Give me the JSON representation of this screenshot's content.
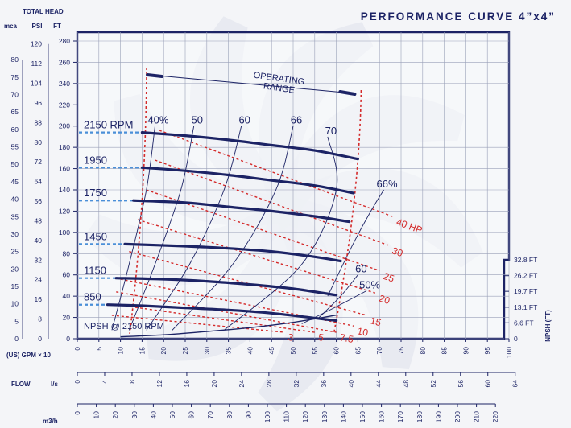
{
  "title": "PERFORMANCE CURVE  4”x4”",
  "total_head_label": "TOTAL HEAD",
  "unit_mca": "mca",
  "unit_psi": "PSI",
  "unit_ft": "FT",
  "gpm_label": "(US) GPM × 10",
  "flow_label": "FLOW",
  "ls_label": "l/s",
  "m3h_label": "m3/h",
  "npsh_label": "NPSH  (FT)",
  "operating_range_label": [
    "OPERATING",
    "RANGE"
  ],
  "npsh_curve_label": "NPSH @ 2150 RPM",
  "colors": {
    "navy": "#1c2365",
    "red": "#d42a2a",
    "dash_blue": "#4a8fd8",
    "bg": "#f4f5f8"
  },
  "chart_data": {
    "type": "line",
    "title": "PERFORMANCE CURVE  4”x4”",
    "xlabel": "(US) GPM × 10",
    "ylabel": "TOTAL HEAD",
    "xlim": [
      0,
      100
    ],
    "ylim": [
      0,
      290
    ],
    "x_ticks": [
      0,
      5,
      10,
      15,
      20,
      25,
      30,
      35,
      40,
      45,
      50,
      55,
      60,
      65,
      70,
      75,
      80,
      85,
      90,
      95,
      100
    ],
    "y_ticks_ft": [
      0,
      20,
      40,
      60,
      80,
      100,
      120,
      140,
      160,
      180,
      200,
      220,
      240,
      260,
      280
    ],
    "y_ticks_psi": [
      0,
      8,
      16,
      24,
      32,
      40,
      48,
      56,
      64,
      72,
      80,
      88,
      96,
      104,
      112,
      120
    ],
    "y_ticks_mca": [
      0,
      5,
      10,
      15,
      20,
      25,
      30,
      35,
      40,
      45,
      50,
      55,
      60,
      65,
      70,
      75,
      80
    ],
    "ls_ticks": [
      0,
      4,
      8,
      12,
      16,
      20,
      24,
      28,
      32,
      36,
      40,
      44,
      48,
      52,
      56,
      60,
      64
    ],
    "m3h_ticks": [
      0,
      10,
      20,
      30,
      40,
      50,
      60,
      70,
      80,
      90,
      100,
      110,
      120,
      130,
      140,
      150,
      160,
      170,
      180,
      190,
      200,
      210,
      220
    ],
    "npsh_ticks": [
      {
        "label": "0",
        "ft": 0
      },
      {
        "label": "6.6 FT",
        "ft": 6.6
      },
      {
        "label": "13.1 FT",
        "ft": 13.1
      },
      {
        "label": "19.7 FT",
        "ft": 19.7
      },
      {
        "label": "26.2 FT",
        "ft": 26.2
      },
      {
        "label": "32.8 FT",
        "ft": 32.8
      }
    ],
    "series": [
      {
        "name": "2150 RPM",
        "x": [
          15,
          25,
          35,
          45,
          55,
          65
        ],
        "y": [
          194,
          191,
          187,
          182,
          177,
          169
        ]
      },
      {
        "name": "1950",
        "x": [
          15,
          25,
          35,
          45,
          55,
          64
        ],
        "y": [
          161,
          158,
          154,
          149,
          144,
          137
        ]
      },
      {
        "name": "1750",
        "x": [
          13,
          25,
          35,
          45,
          55,
          63
        ],
        "y": [
          130,
          128,
          124,
          120,
          115,
          110
        ]
      },
      {
        "name": "1450",
        "x": [
          11,
          25,
          35,
          45,
          55,
          61
        ],
        "y": [
          89,
          87,
          85,
          82,
          77,
          73
        ]
      },
      {
        "name": "1150",
        "x": [
          9,
          20,
          30,
          40,
          50,
          60
        ],
        "y": [
          57,
          56,
          54,
          51,
          47,
          41
        ]
      },
      {
        "name": "850",
        "x": [
          7,
          15,
          25,
          35,
          45,
          60
        ],
        "y": [
          32,
          31,
          29,
          27,
          24,
          17
        ]
      }
    ],
    "npsh_curve": {
      "x": [
        10,
        20,
        30,
        40,
        50,
        60
      ],
      "y": [
        0.8,
        1.6,
        3.0,
        4.6,
        6.8,
        9.8
      ]
    },
    "efficiency_lines": [
      {
        "label": "40%",
        "x": [
          8,
          12,
          16,
          18
        ],
        "y": [
          8,
          70,
          140,
          200
        ]
      },
      {
        "label": "50",
        "x": [
          12,
          18,
          24,
          27
        ],
        "y": [
          8,
          70,
          140,
          200
        ]
      },
      {
        "label": "60",
        "x": [
          16,
          26,
          34,
          38
        ],
        "y": [
          8,
          70,
          140,
          200
        ]
      },
      {
        "label": "66",
        "x": [
          22,
          36,
          46,
          50
        ],
        "y": [
          8,
          70,
          140,
          200
        ]
      },
      {
        "label": "70",
        "x": [
          34,
          52,
          60,
          58
        ],
        "y": [
          8,
          70,
          140,
          190
        ]
      },
      {
        "label": "66%",
        "x": [
          58,
          64,
          68,
          71
        ],
        "y": [
          40,
          90,
          120,
          140
        ]
      },
      {
        "label": "60",
        "x": [
          56,
          61,
          65
        ],
        "y": [
          20,
          40,
          60
        ]
      },
      {
        "label": "50%",
        "x": [
          52,
          59,
          67
        ],
        "y": [
          14,
          28,
          45
        ]
      }
    ],
    "power_lines": [
      {
        "label": "40 HP",
        "x": [
          19,
          73
        ],
        "y": [
          196,
          115
        ]
      },
      {
        "label": "30",
        "x": [
          18,
          72
        ],
        "y": [
          168,
          88
        ]
      },
      {
        "label": "25",
        "x": [
          16,
          70
        ],
        "y": [
          140,
          64
        ]
      },
      {
        "label": "20",
        "x": [
          14,
          69
        ],
        "y": [
          112,
          43
        ]
      },
      {
        "label": "15",
        "x": [
          12,
          67
        ],
        "y": [
          82,
          22
        ]
      },
      {
        "label": "10",
        "x": [
          10,
          64
        ],
        "y": [
          56,
          12
        ]
      },
      {
        "label": "7.5",
        "x": [
          9,
          60
        ],
        "y": [
          44,
          6
        ]
      },
      {
        "label": "5",
        "x": [
          9,
          55
        ],
        "y": [
          32,
          6
        ]
      },
      {
        "label": "3",
        "x": [
          8,
          48
        ],
        "y": [
          22,
          6
        ]
      }
    ],
    "operating_range": {
      "left_x": 15.5,
      "right_x": 65.0
    },
    "legend": "none"
  }
}
